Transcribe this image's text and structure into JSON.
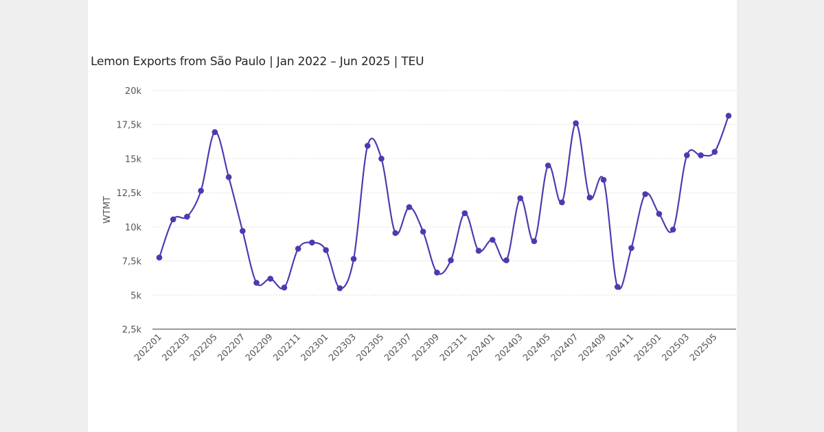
{
  "chart_data": {
    "type": "line",
    "title": "Lemon Exports from São Paulo | Jan 2022 – Jun 2025 | TEU",
    "xlabel": "",
    "ylabel": "WTMT",
    "ylim": [
      2500,
      20000
    ],
    "yticks": [
      2500,
      5000,
      7500,
      10000,
      12500,
      15000,
      17500,
      20000
    ],
    "ytick_labels": [
      "2,5k",
      "5k",
      "7,5k",
      "10k",
      "12,5k",
      "15k",
      "17,5k",
      "20k"
    ],
    "grid": "horizontal dotted",
    "line_color": "#4b3bb0",
    "x": [
      "202201",
      "202202",
      "202203",
      "202204",
      "202205",
      "202206",
      "202207",
      "202208",
      "202209",
      "202210",
      "202211",
      "202212",
      "202301",
      "202302",
      "202303",
      "202304",
      "202305",
      "202306",
      "202307",
      "202308",
      "202309",
      "202310",
      "202311",
      "202312",
      "202401",
      "202402",
      "202403",
      "202404",
      "202405",
      "202406",
      "202407",
      "202408",
      "202409",
      "202410",
      "202411",
      "202412",
      "202501",
      "202502",
      "202503",
      "202504",
      "202505",
      "202506"
    ],
    "xtick_labels": [
      "202201",
      "202203",
      "202205",
      "202207",
      "202209",
      "202211",
      "202301",
      "202303",
      "202305",
      "202307",
      "202309",
      "202311",
      "202401",
      "202403",
      "202405",
      "202407",
      "202409",
      "202411",
      "202501",
      "202503",
      "202505"
    ],
    "values": [
      7750,
      10550,
      10750,
      12650,
      16950,
      13650,
      9700,
      5900,
      6200,
      5550,
      8400,
      8850,
      8300,
      5500,
      7650,
      15950,
      15000,
      9550,
      11450,
      9650,
      6650,
      7550,
      11000,
      8250,
      9050,
      7550,
      12100,
      8950,
      14500,
      11800,
      17600,
      12150,
      13450,
      5600,
      8450,
      12400,
      10950,
      9800,
      15250,
      15250,
      15500,
      18150
    ]
  }
}
